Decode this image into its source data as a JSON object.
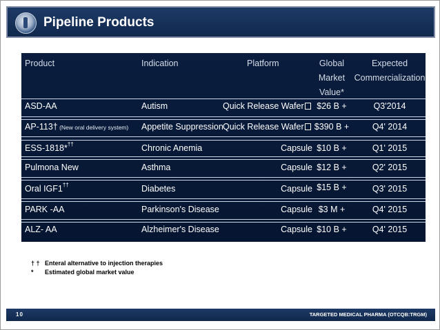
{
  "slide": {
    "title": "Pipeline Products",
    "page_number": "10",
    "footer_text": "TARGETED MEDICAL PHARMA   (OTCQB:TRGM)"
  },
  "table": {
    "headers": {
      "product": "Product",
      "indication": "Indication",
      "platform": "Platform",
      "market_l1": "Global",
      "market_l2": "Market",
      "market_l3": "Value*",
      "expected_l1": "Expected",
      "expected_l2": "Commercialization"
    },
    "rows": [
      {
        "product": "ASD-AA",
        "product_note": "",
        "product_sup": "",
        "indication": "Autism",
        "platform": "Quick Release Wafer",
        "market": "$26 B +",
        "date": "Q3'2014"
      },
      {
        "product": "AP-113†",
        "product_note": " (New oral delivery system)",
        "product_sup": "",
        "indication": "Appetite Suppression",
        "platform": "Quick Release Wafer",
        "market": "$390 B +",
        "date": "Q4' 2014"
      },
      {
        "product": "ESS-1818*",
        "product_note": "",
        "product_sup": "††",
        "indication": "Chronic Anemia",
        "platform": "Capsule",
        "market": "$10 B +",
        "date": "Q1' 2015"
      },
      {
        "product": "Pulmona New",
        "product_note": "",
        "product_sup": "",
        "indication": "Asthma",
        "platform": "Capsule",
        "market": "$12 B +",
        "date": "Q2' 2015"
      },
      {
        "product": "Oral IGF1",
        "product_note": "",
        "product_sup": "††",
        "indication": "Diabetes",
        "platform": "Capsule",
        "market": "$15 B +",
        "date": "Q3' 2015"
      },
      {
        "product": "PARK -AA",
        "product_note": "",
        "product_sup": "",
        "indication": "Parkinson's Disease",
        "platform": "Capsule",
        "market": "$3 M +",
        "date": "Q4' 2015"
      },
      {
        "product": "ALZ- AA",
        "product_note": "",
        "product_sup": "",
        "indication": "Alzheimer's Disease",
        "platform": "Capsule",
        "market": "$10 B +",
        "date": "Q4' 2015"
      }
    ]
  },
  "footnotes": [
    {
      "mark": "† †",
      "text": "Enteral alternative to injection therapies"
    },
    {
      "mark": "*",
      "text": "Estimated global market value"
    }
  ],
  "colors": {
    "title_bar": "#1d3a66",
    "table_background": "#0a1d3e"
  }
}
